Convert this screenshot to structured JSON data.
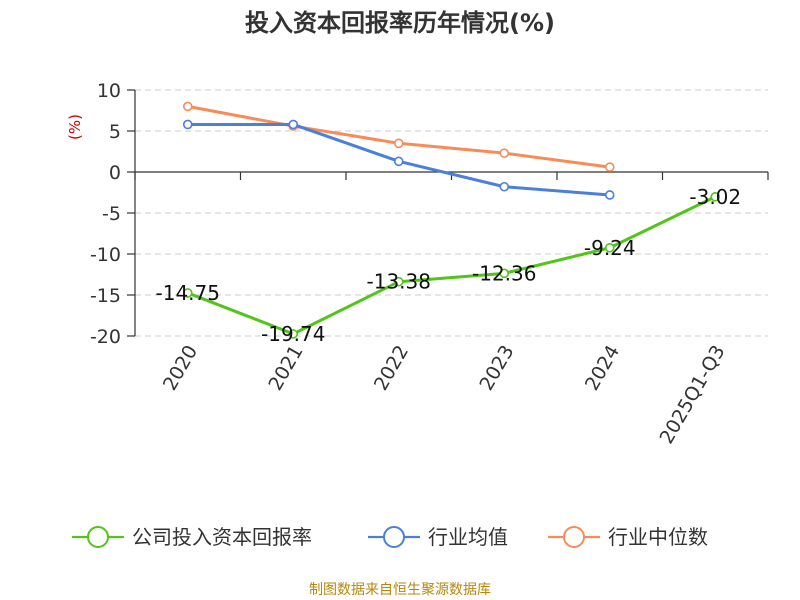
{
  "title": "投入资本回报率历年情况(%)",
  "source": "制图数据来自恒生聚源数据库",
  "chart_data": {
    "type": "line",
    "title": "投入资本回报率历年情况(%)",
    "ylabel": "(%)",
    "xlabel": "",
    "categories": [
      "2020",
      "2021",
      "2022",
      "2023",
      "2024",
      "2025Q1-Q3"
    ],
    "yticks": [
      10,
      5,
      0,
      -5,
      -10,
      -15,
      -20
    ],
    "ylim": [
      -20,
      10
    ],
    "grid": true,
    "legend_position": "bottom",
    "series": [
      {
        "name": "公司投入资本回报率",
        "color": "#52c41a",
        "values": [
          -14.75,
          -19.74,
          -13.38,
          -12.36,
          -9.24,
          -3.02
        ],
        "labels": [
          "-14.75",
          "-19.74",
          "-13.38",
          "-12.36",
          "-9.24",
          "-3.02"
        ]
      },
      {
        "name": "行业均值",
        "color": "#4a7fdc",
        "values": [
          5.8,
          5.8,
          1.3,
          -1.8,
          -2.8,
          null
        ]
      },
      {
        "name": "行业中位数",
        "color": "#f58c5a",
        "values": [
          8.0,
          5.6,
          3.5,
          2.3,
          0.6,
          null
        ]
      }
    ]
  }
}
